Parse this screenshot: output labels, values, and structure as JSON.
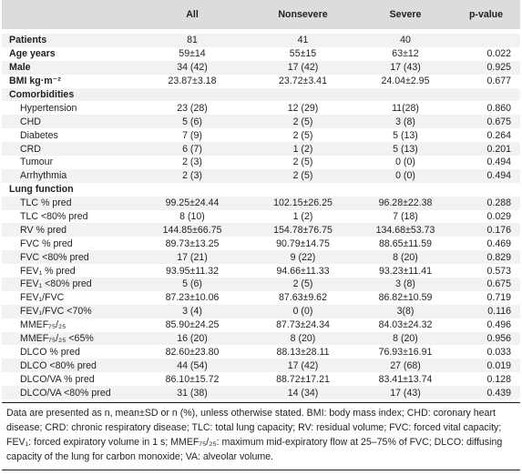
{
  "header": {
    "col0": "",
    "col1": "All",
    "col2": "Nonsevere",
    "col3": "Severe",
    "col4": "p-value"
  },
  "rows": [
    {
      "label": "Patients",
      "all": "81",
      "nonsevere": "41",
      "severe": "40",
      "p": "",
      "style": "bold",
      "bg": true
    },
    {
      "label": "Age years",
      "all": "59±14",
      "nonsevere": "55±15",
      "severe": "63±12",
      "p": "0.022",
      "style": "bold",
      "bg": false
    },
    {
      "label": "Male",
      "all": "34 (42)",
      "nonsevere": "17 (42)",
      "severe": "17 (43)",
      "p": "0.925",
      "style": "bold",
      "bg": true
    },
    {
      "label": "BMI kg·m⁻²",
      "all": "23.87±3.18",
      "nonsevere": "23.72±3.41",
      "severe": "24.04±2.95",
      "p": "0.677",
      "style": "bold",
      "bg": false
    },
    {
      "label": "Comorbidities",
      "all": "",
      "nonsevere": "",
      "severe": "",
      "p": "",
      "style": "bold",
      "bg": true
    },
    {
      "label": "Hypertension",
      "all": "23 (28)",
      "nonsevere": "12 (29)",
      "severe": "11(28)",
      "p": "0.860",
      "style": "sub",
      "bg": false
    },
    {
      "label": "CHD",
      "all": "5 (6)",
      "nonsevere": "2 (5)",
      "severe": "3 (8)",
      "p": "0.675",
      "style": "sub",
      "bg": true
    },
    {
      "label": "Diabetes",
      "all": "7 (9)",
      "nonsevere": "2 (5)",
      "severe": "5 (13)",
      "p": "0.264",
      "style": "sub",
      "bg": false
    },
    {
      "label": "CRD",
      "all": "6 (7)",
      "nonsevere": "1 (2)",
      "severe": "5 (13)",
      "p": "0.201",
      "style": "sub",
      "bg": true
    },
    {
      "label": "Tumour",
      "all": "2 (3)",
      "nonsevere": "2 (5)",
      "severe": "0 (0)",
      "p": "0.494",
      "style": "sub",
      "bg": false
    },
    {
      "label": "Arrhythmia",
      "all": "2 (3)",
      "nonsevere": "2 (5)",
      "severe": "0 (0)",
      "p": "0.494",
      "style": "sub",
      "bg": true
    },
    {
      "label": "Lung function",
      "all": "",
      "nonsevere": "",
      "severe": "",
      "p": "",
      "style": "bold",
      "bg": false
    },
    {
      "label": "TLC % pred",
      "all": "99.25±24.44",
      "nonsevere": "102.15±26.25",
      "severe": "96.28±22.38",
      "p": "0.288",
      "style": "sub",
      "bg": true
    },
    {
      "label": "TLC <80% pred",
      "all": "8 (10)",
      "nonsevere": "1 (2)",
      "severe": "7 (18)",
      "p": "0.029",
      "style": "sub",
      "bg": false
    },
    {
      "label": "RV % pred",
      "all": "144.85±66.75",
      "nonsevere": "154.78±76.75",
      "severe": "134.68±53.73",
      "p": "0.176",
      "style": "sub",
      "bg": true
    },
    {
      "label": "FVC % pred",
      "all": "89.73±13.25",
      "nonsevere": "90.79±14.75",
      "severe": "88.65±11.59",
      "p": "0.469",
      "style": "sub",
      "bg": false
    },
    {
      "label": "FVC <80% pred",
      "all": "17 (21)",
      "nonsevere": "9 (22)",
      "severe": "8 (20)",
      "p": "0.829",
      "style": "sub",
      "bg": true
    },
    {
      "label": "FEV₁ % pred",
      "all": "93.95±11.32",
      "nonsevere": "94.66±11.33",
      "severe": "93.23±11.41",
      "p": "0.573",
      "style": "sub",
      "bg": false
    },
    {
      "label": "FEV₁ <80% pred",
      "all": "5 (6)",
      "nonsevere": "2 (5)",
      "severe": "3 (8)",
      "p": "0.675",
      "style": "sub",
      "bg": true
    },
    {
      "label": "FEV₁/FVC",
      "all": "87.23±10.06",
      "nonsevere": "87.63±9.62",
      "severe": "86.82±10.59",
      "p": "0.719",
      "style": "sub",
      "bg": false
    },
    {
      "label": "FEV₁/FVC <70%",
      "all": "3 (4)",
      "nonsevere": "0 (0)",
      "severe": "3(8)",
      "p": "0.116",
      "style": "sub",
      "bg": true
    },
    {
      "label": "MMEF₇₅/₂₅",
      "all": "85.90±24.25",
      "nonsevere": "87.73±24.34",
      "severe": "84.03±24.32",
      "p": "0.496",
      "style": "sub",
      "bg": false
    },
    {
      "label": "MMEF₇₅/₂₅ <65%",
      "all": "16 (20)",
      "nonsevere": "8 (20)",
      "severe": "8 (20)",
      "p": "0.956",
      "style": "sub",
      "bg": true
    },
    {
      "label": "DLCO % pred",
      "all": "82.60±23.80",
      "nonsevere": "88.13±28.11",
      "severe": "76.93±16.91",
      "p": "0.033",
      "style": "sub",
      "bg": false
    },
    {
      "label": "DLCO <80% pred",
      "all": "44 (54)",
      "nonsevere": "17 (42)",
      "severe": "27 (68)",
      "p": "0.019",
      "style": "sub",
      "bg": true
    },
    {
      "label": "DLCO/VA % pred",
      "all": "86.10±15.72",
      "nonsevere": "88.72±17.21",
      "severe": "83.41±13.74",
      "p": "0.128",
      "style": "sub",
      "bg": false
    },
    {
      "label": "DLCO/VA <80% pred",
      "all": "31 (38)",
      "nonsevere": "14 (34)",
      "severe": "17 (43)",
      "p": "0.439",
      "style": "sub",
      "bg": true
    }
  ],
  "footnote": "Data are presented as n, mean±SD or n (%), unless otherwise stated. BMI: body mass index; CHD: coronary heart disease; CRD: chronic respiratory disease; TLC: total lung capacity; RV: residual volume; FVC: forced vital capacity; FEV₁: forced expiratory volume in 1 s; MMEF₇₅/₂₅: maximum mid-expiratory flow at 25–75% of FVC; DLCO: diffusing capacity of the lung for carbon monoxide; VA: alveolar volume."
}
